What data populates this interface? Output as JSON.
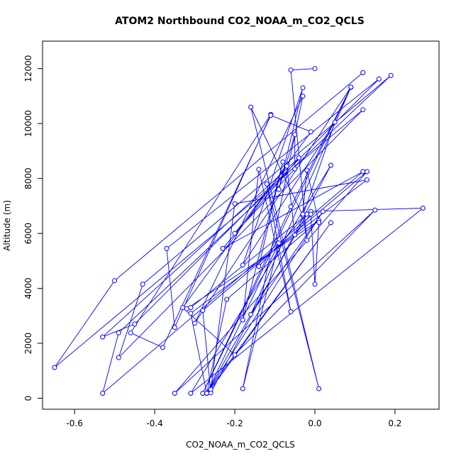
{
  "chart_data": {
    "type": "scatter",
    "title": "ATOM2 Northbound CO2_NOAA_m_CO2_QCLS",
    "xlabel": "CO2_NOAA_m_CO2_QCLS",
    "ylabel": "Altitude (m)",
    "xlim": [
      -0.68,
      0.31
    ],
    "ylim": [
      -400,
      13000
    ],
    "x_ticks": [
      -0.6,
      -0.4,
      -0.2,
      0.0,
      0.2
    ],
    "x_tick_labels": [
      "-0.6",
      "-0.4",
      "-0.2",
      "0.0",
      "0.2"
    ],
    "y_ticks": [
      0,
      2000,
      4000,
      6000,
      8000,
      10000,
      12000
    ],
    "y_tick_labels": [
      "0",
      "2000",
      "4000",
      "6000",
      "8000",
      "10000",
      "12000"
    ],
    "series_color": "#0000ff",
    "grid": false,
    "series": [
      {
        "x": [
          0.12,
          -0.5,
          -0.65,
          0.12,
          -0.49,
          -0.43,
          0.19,
          -0.49,
          -0.53,
          0.12,
          -0.23,
          -0.04,
          -0.53,
          -0.45,
          0.16,
          -0.37,
          -0.35,
          -0.11,
          -0.46,
          -0.38,
          -0.11,
          -0.01,
          -0.33,
          -0.2,
          0.15,
          -0.35,
          0.13,
          -0.28,
          -0.26,
          0.04,
          -0.31,
          0.27,
          -0.01,
          -0.31,
          -0.32,
          0.01,
          -0.22,
          -0.27,
          0.04,
          -0.26,
          -0.2,
          0.13,
          -0.31,
          -0.27,
          0.02,
          -0.16,
          0.09,
          -0.28,
          -0.06,
          0.09,
          -0.3,
          -0.03,
          -0.18,
          -0.09,
          -0.27,
          -0.02,
          -0.14,
          -0.08,
          -0.18,
          -0.14,
          -0.06,
          -0.12,
          0.01,
          -0.16,
          -0.03,
          0.05,
          -0.18,
          -0.03,
          -0.09,
          -0.05,
          -0.05,
          -0.2,
          -0.07,
          -0.05,
          -0.01,
          0.0,
          0.01,
          -0.02,
          -0.03,
          -0.02,
          -0.06,
          0.0
        ],
        "y": [
          11850,
          4280,
          1120,
          10500,
          1480,
          4150,
          11750,
          2380,
          180,
          8250,
          5450,
          8750,
          2230,
          2700,
          11620,
          5450,
          2580,
          10330,
          2380,
          1850,
          10300,
          9700,
          3300,
          1580,
          6850,
          180,
          8250,
          3200,
          200,
          8480,
          180,
          6920,
          6800,
          3300,
          3260,
          6470,
          3600,
          180,
          6390,
          320,
          7080,
          7950,
          3090,
          180,
          6800,
          3050,
          11320,
          180,
          6970,
          11330,
          2730,
          11000,
          350,
          5650,
          180,
          6700,
          4800,
          8600,
          2850,
          8330,
          3150,
          7800,
          350,
          10600,
          6650,
          10050,
          4850,
          11300,
          7600,
          9600,
          8350,
          6000,
          8450,
          5950,
          6700,
          4150,
          6400,
          8300,
          6700,
          5750,
          11950,
          12000
        ]
      }
    ]
  }
}
